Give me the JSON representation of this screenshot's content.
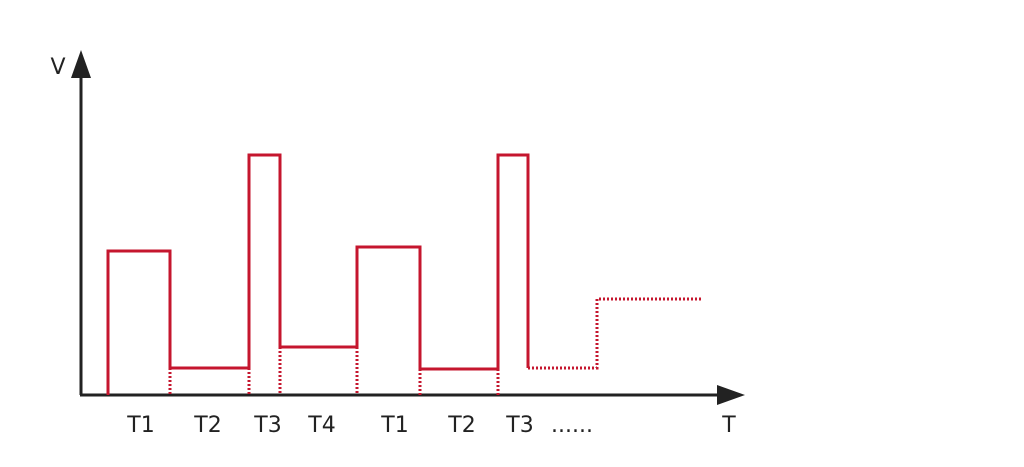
{
  "axes": {
    "y_label": "V",
    "x_label": "T"
  },
  "segments": [
    "T1",
    "T2",
    "T3",
    "T4",
    "T1",
    "T2",
    "T3"
  ],
  "continuation": "......"
}
